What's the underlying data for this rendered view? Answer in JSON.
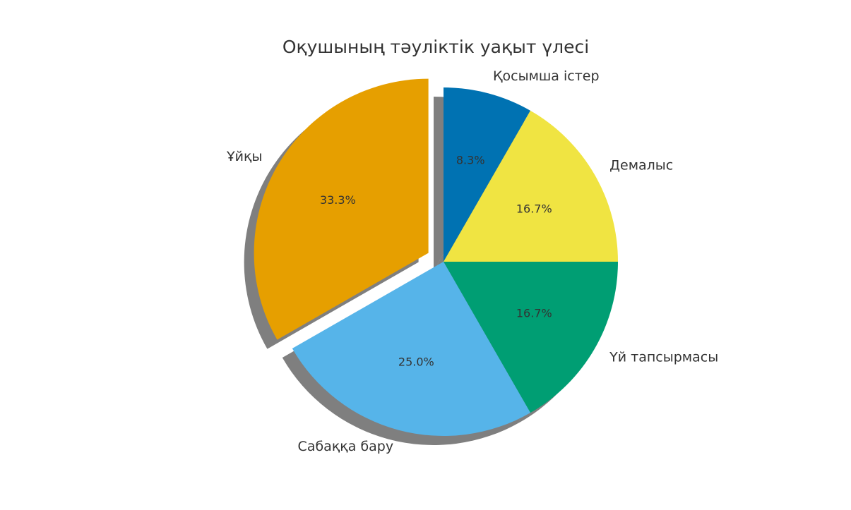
{
  "chart_data": {
    "type": "pie",
    "title": "Оқушының тәуліктік уақыт үлесі",
    "categories": [
      "Қосымша істер",
      "Демалыс",
      "Үй тапсырмасы",
      "Сабаққа бару",
      "Ұйқы"
    ],
    "values": [
      8.3,
      16.7,
      16.7,
      25.0,
      33.3
    ],
    "value_labels": [
      "8.3%",
      "16.7%",
      "16.7%",
      "25.0%",
      "33.3%"
    ],
    "colors": [
      "#0072b2",
      "#f0e442",
      "#009e73",
      "#56b4e9",
      "#e69f00"
    ],
    "explode": [
      0,
      0,
      0,
      0,
      0.1
    ],
    "shadow": true,
    "startangle": 90,
    "counterclock": false
  }
}
